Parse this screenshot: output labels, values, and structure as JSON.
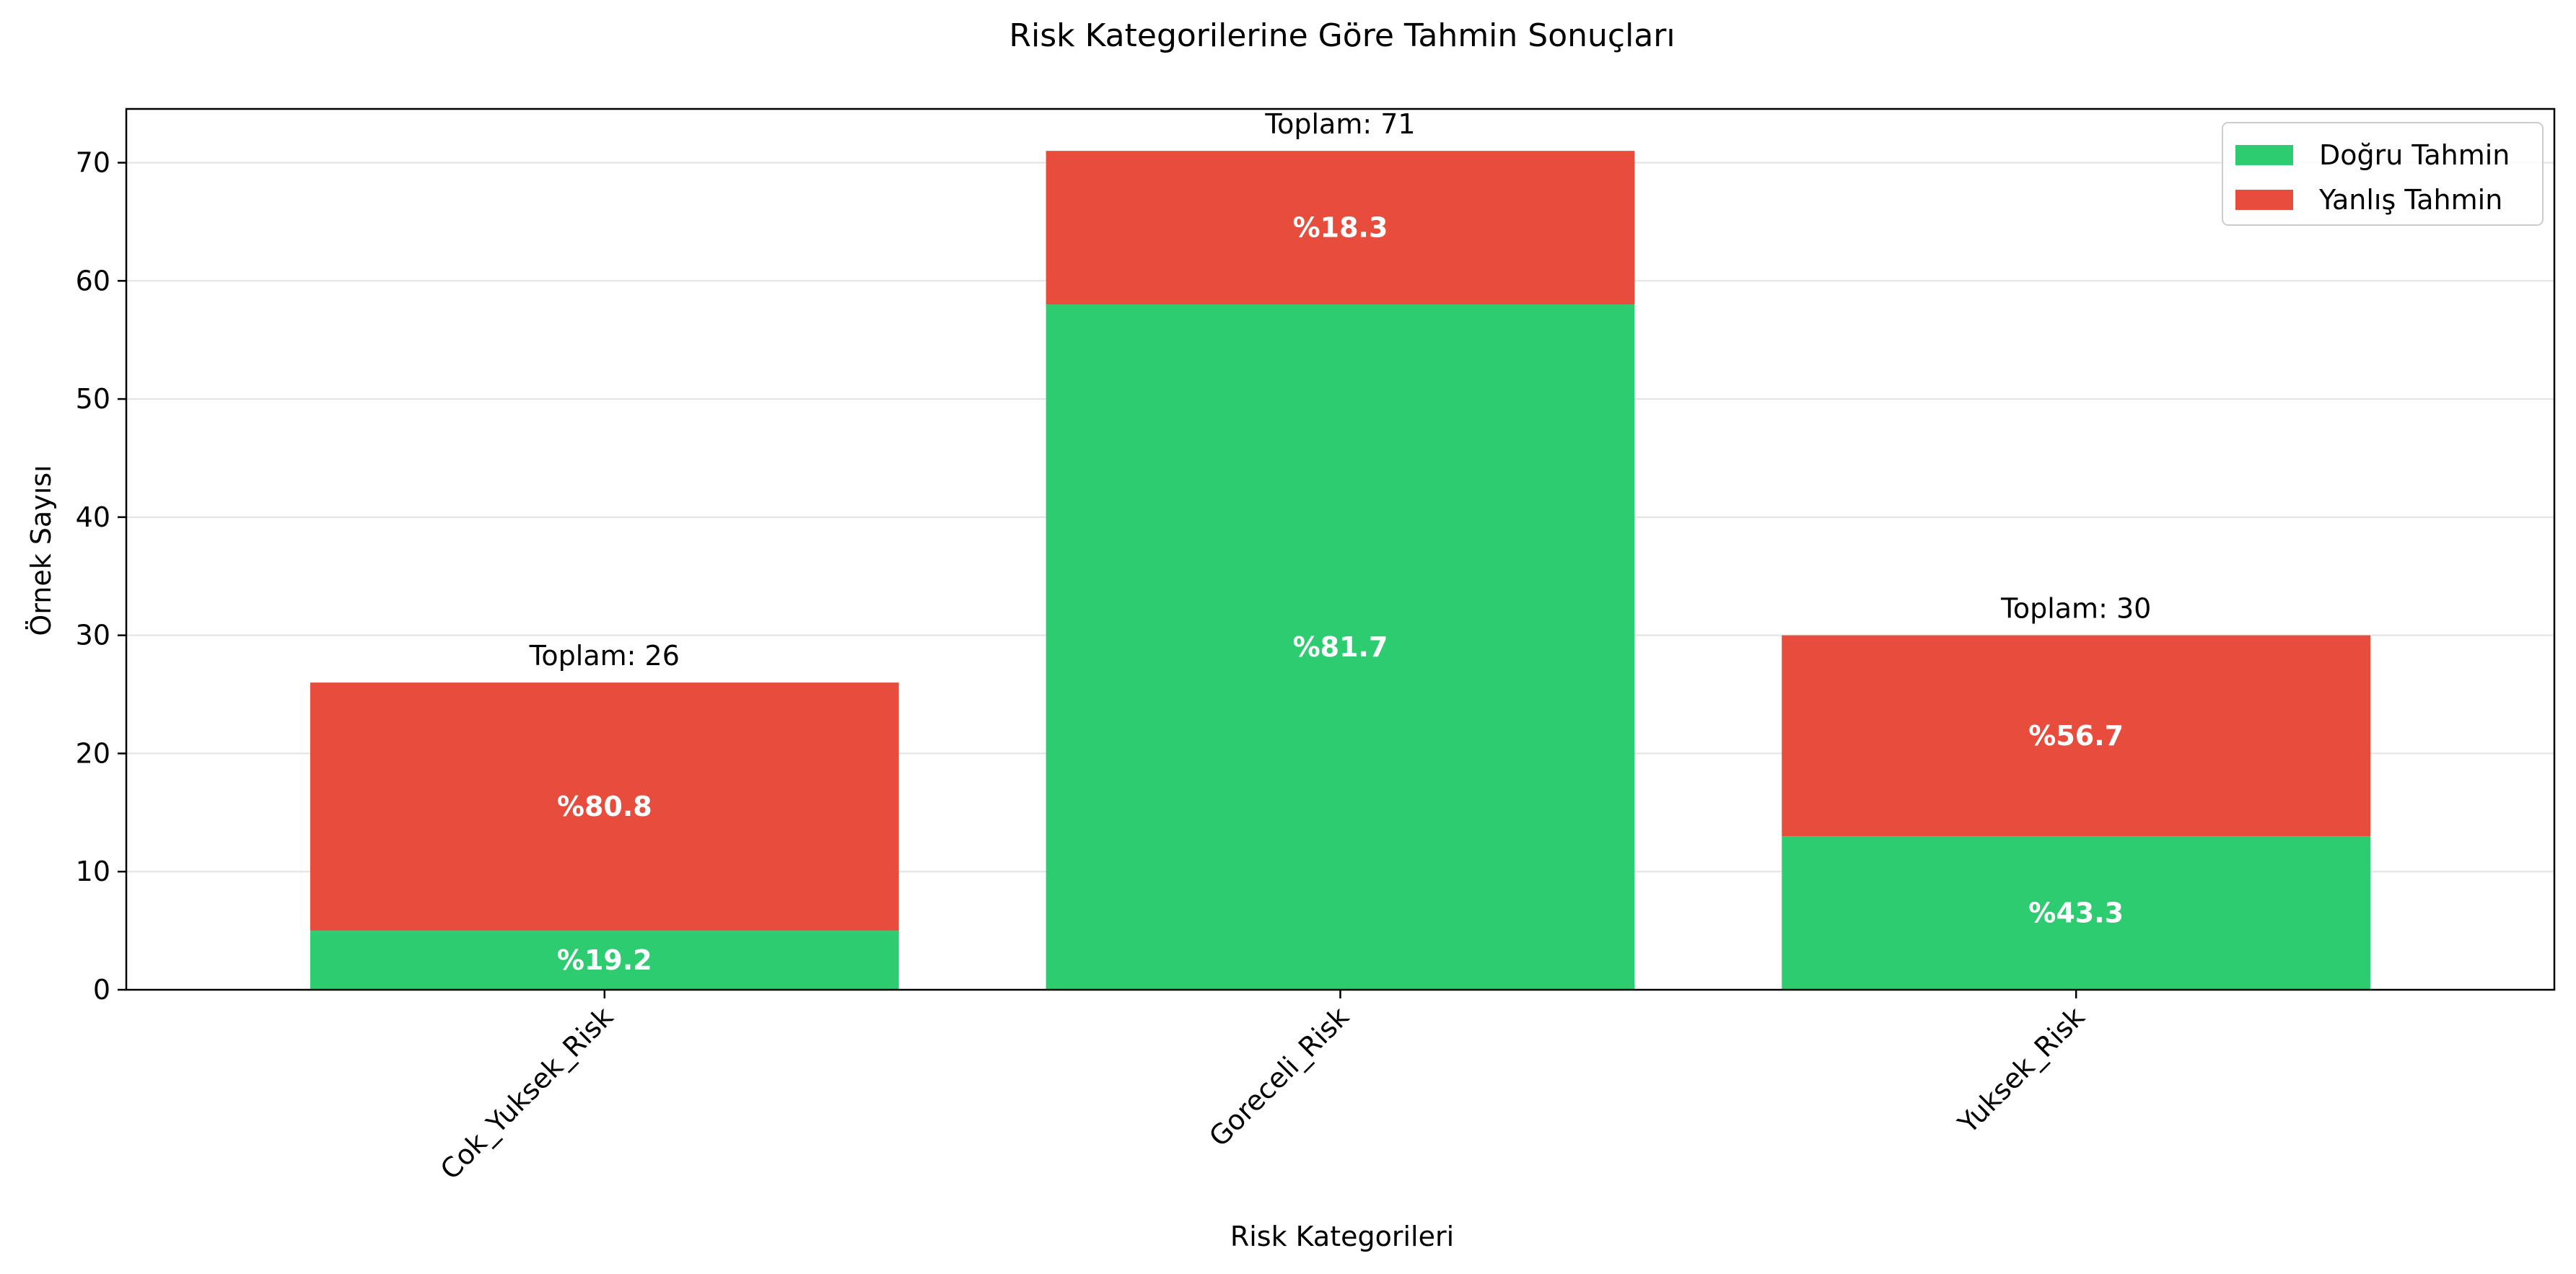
{
  "chart_data": {
    "type": "bar",
    "stacked": true,
    "title": "Risk Kategorilerine Göre Tahmin Sonuçları",
    "xlabel": "Risk Kategorileri",
    "ylabel": "Örnek Sayısı",
    "ylim": [
      0,
      74.55
    ],
    "yticks": [
      0,
      10,
      20,
      30,
      40,
      50,
      60,
      70
    ],
    "grid": "horizontal",
    "legend_position": "top-right",
    "categories": [
      "Cok_Yuksek_Risk",
      "Goreceli_Risk",
      "Yuksek_Risk"
    ],
    "series": [
      {
        "name": "Doğru Tahmin",
        "color": "#2ecc71",
        "values": [
          5,
          58,
          13
        ],
        "labels": [
          "%19.2",
          "%81.7",
          "%43.3"
        ]
      },
      {
        "name": "Yanlış Tahmin",
        "color": "#e74c3c",
        "values": [
          21,
          13,
          17
        ],
        "labels": [
          "%80.8",
          "%18.3",
          "%56.7"
        ]
      }
    ],
    "totals": [
      "Toplam: 26",
      "Toplam: 71",
      "Toplam: 30"
    ]
  }
}
